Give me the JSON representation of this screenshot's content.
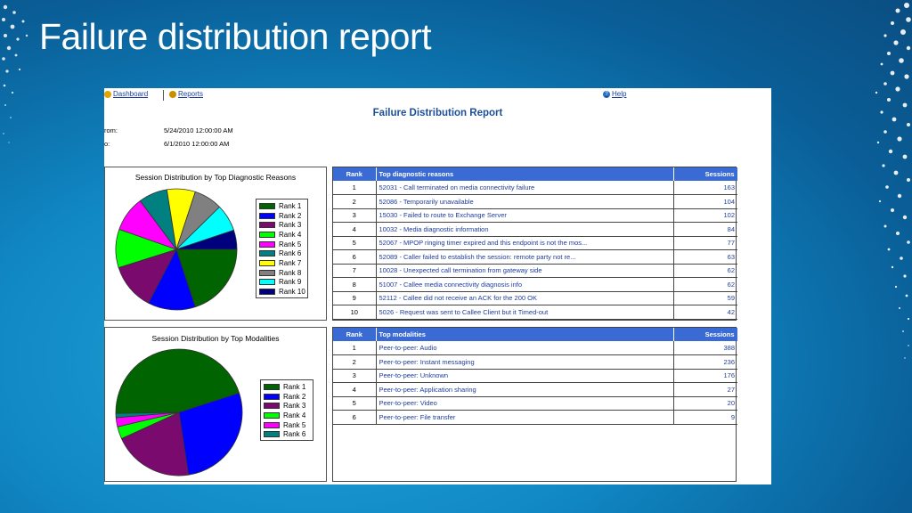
{
  "slide": {
    "title": "Failure distribution report"
  },
  "report": {
    "links": {
      "dashboard": "Dashboard",
      "reports": "Reports",
      "help": "Help"
    },
    "title": "Failure Distribution Report",
    "from_label": "rom:",
    "from_value": "5/24/2010 12:00:00 AM",
    "to_label": "o:",
    "to_value": "6/1/2010 12:00:00 AM"
  },
  "diag_chart": {
    "title": "Session Distribution by Top Diagnostic Reasons",
    "legend": [
      "Rank 1",
      "Rank 2",
      "Rank 3",
      "Rank 4",
      "Rank 5",
      "Rank 6",
      "Rank 7",
      "Rank 8",
      "Rank 9",
      "Rank 10"
    ]
  },
  "modal_chart": {
    "title": "Session Distribution by Top Modalities",
    "legend": [
      "Rank 1",
      "Rank 2",
      "Rank 3",
      "Rank 4",
      "Rank 5",
      "Rank 6"
    ]
  },
  "chart_data": [
    {
      "type": "pie",
      "title": "Session Distribution by Top Diagnostic Reasons",
      "categories": [
        "Rank 1",
        "Rank 2",
        "Rank 3",
        "Rank 4",
        "Rank 5",
        "Rank 6",
        "Rank 7",
        "Rank 8",
        "Rank 9",
        "Rank 10"
      ],
      "values": [
        163,
        104,
        102,
        84,
        77,
        63,
        62,
        62,
        59,
        42
      ],
      "colors": [
        "#006400",
        "#0000ff",
        "#7a0a6e",
        "#00ff00",
        "#ff00ff",
        "#008080",
        "#ffff00",
        "#808080",
        "#00ffff",
        "#00007f"
      ],
      "legend_position": "right"
    },
    {
      "type": "pie",
      "title": "Session Distribution by Top Modalities",
      "categories": [
        "Rank 1",
        "Rank 2",
        "Rank 3",
        "Rank 4",
        "Rank 5",
        "Rank 6"
      ],
      "values": [
        388,
        236,
        176,
        27,
        20,
        9
      ],
      "colors": [
        "#006400",
        "#0000ff",
        "#7a0a6e",
        "#00ff00",
        "#ff00ff",
        "#008080"
      ],
      "legend_position": "right"
    }
  ],
  "diag_table": {
    "headers": {
      "rank": "Rank",
      "reason": "Top diagnostic reasons",
      "sessions": "Sessions"
    },
    "rows": [
      {
        "rank": "1",
        "reason": "52031 - Call terminated on media connectivity failure",
        "sessions": "163"
      },
      {
        "rank": "2",
        "reason": "52086 - Temporarily unavailable",
        "sessions": "104"
      },
      {
        "rank": "3",
        "reason": "15030 - Failed to route to Exchange Server",
        "sessions": "102"
      },
      {
        "rank": "4",
        "reason": "10032 - Media diagnostic information",
        "sessions": "84"
      },
      {
        "rank": "5",
        "reason": "52067 - MPOP ringing timer expired and this endpoint is not the mos...",
        "sessions": "77"
      },
      {
        "rank": "6",
        "reason": "52089 - Caller failed to establish the session: remote party not re...",
        "sessions": "63"
      },
      {
        "rank": "7",
        "reason": "10028 - Unexpected call termination from gateway side",
        "sessions": "62"
      },
      {
        "rank": "8",
        "reason": "51007 - Callee media connectivity diagnosis info",
        "sessions": "62"
      },
      {
        "rank": "9",
        "reason": "52112 - Callee did not receive an ACK for the 200 OK",
        "sessions": "59"
      },
      {
        "rank": "10",
        "reason": "5026 - Request was sent to Callee Client but it Timed-out",
        "sessions": "42"
      }
    ]
  },
  "modal_table": {
    "headers": {
      "rank": "Rank",
      "modality": "Top modalities",
      "sessions": "Sessions"
    },
    "rows": [
      {
        "rank": "1",
        "modality": "Peer-to-peer: Audio",
        "sessions": "388"
      },
      {
        "rank": "2",
        "modality": "Peer-to-peer: Instant messaging",
        "sessions": "236"
      },
      {
        "rank": "3",
        "modality": "Peer-to-peer: Unknown",
        "sessions": "176"
      },
      {
        "rank": "4",
        "modality": "Peer-to-peer: Application sharing",
        "sessions": "27"
      },
      {
        "rank": "5",
        "modality": "Peer-to-peer: Video",
        "sessions": "20"
      },
      {
        "rank": "6",
        "modality": "Peer-to-peer: File transfer",
        "sessions": "9"
      }
    ]
  }
}
